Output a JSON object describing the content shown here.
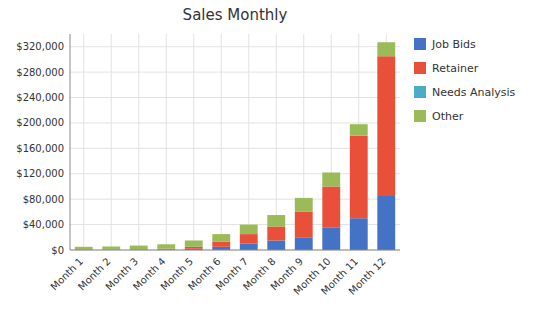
{
  "chart_data": {
    "type": "bar",
    "stacked": true,
    "title": "Sales Monthly",
    "categories": [
      "Month 1",
      "Month 2",
      "Month 3",
      "Month 4",
      "Month 5",
      "Month 6",
      "Month 7",
      "Month 8",
      "Month 9",
      "Month 10",
      "Month 11",
      "Month 12"
    ],
    "series": [
      {
        "name": "Job Bids",
        "color": "#4472C4",
        "values": [
          0,
          0,
          0,
          500,
          2000,
          5000,
          10000,
          15000,
          20000,
          35000,
          50000,
          85000
        ]
      },
      {
        "name": "Retainer",
        "color": "#E8503A",
        "values": [
          0,
          500,
          1000,
          1500,
          3000,
          8000,
          15000,
          22000,
          40000,
          65000,
          130000,
          220000
        ]
      },
      {
        "name": "Needs Analysis",
        "color": "#4BACC6",
        "values": [
          0,
          0,
          0,
          0,
          0,
          0,
          0,
          0,
          0,
          0,
          0,
          0
        ]
      },
      {
        "name": "Other",
        "color": "#9BBB59",
        "values": [
          5000,
          5000,
          6000,
          7000,
          10000,
          12000,
          15000,
          18000,
          22000,
          22000,
          18000,
          22000
        ]
      }
    ],
    "ylim": [
      0,
      340000
    ],
    "yticks": [
      {
        "value": 0,
        "label": "$0"
      },
      {
        "value": 40000,
        "label": "$40,000"
      },
      {
        "value": 80000,
        "label": "$80,000"
      },
      {
        "value": 120000,
        "label": "$120,000"
      },
      {
        "value": 160000,
        "label": "$160,000"
      },
      {
        "value": 200000,
        "label": "$200,000"
      },
      {
        "value": 240000,
        "label": "$240,000"
      },
      {
        "value": 280000,
        "label": "$280,000"
      },
      {
        "value": 320000,
        "label": "$320,000"
      }
    ],
    "grid": true,
    "legend": "right"
  }
}
